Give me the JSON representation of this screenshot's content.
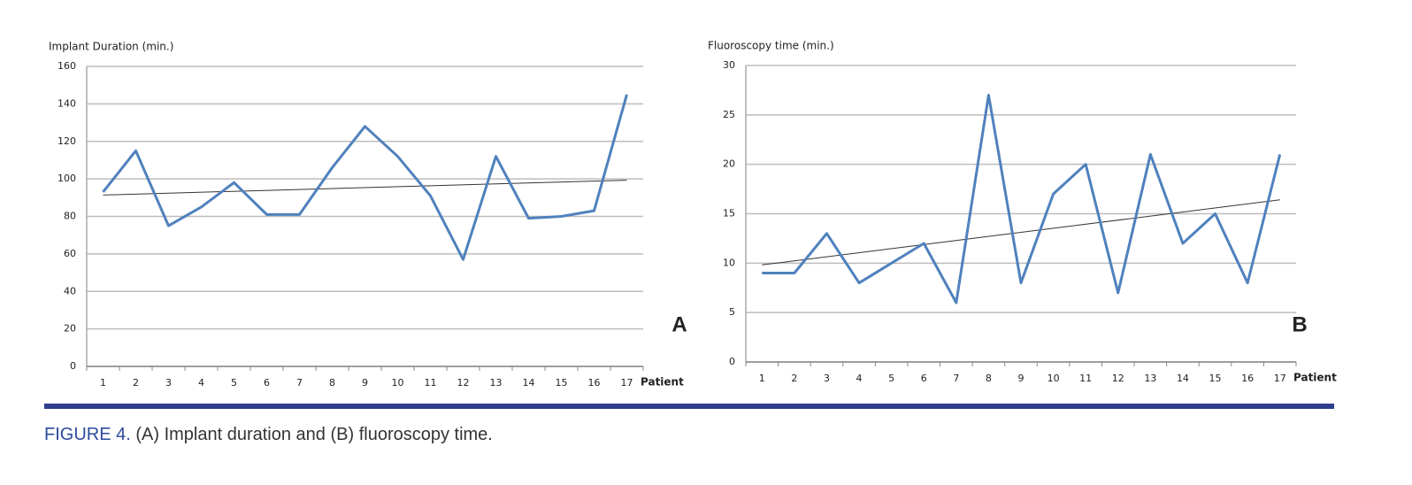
{
  "chart_data": [
    {
      "type": "line",
      "ylabel": "Implant Duration (min.)",
      "xlabel": "Patient",
      "panel_label": "A",
      "categories": [
        "1",
        "2",
        "3",
        "4",
        "5",
        "6",
        "7",
        "8",
        "9",
        "10",
        "11",
        "12",
        "13",
        "14",
        "15",
        "16",
        "17"
      ],
      "series": [
        {
          "color": "#4f81bd",
          "values": [
            93,
            115,
            75,
            85,
            98,
            81,
            81,
            106,
            128,
            112,
            91,
            57,
            112,
            79,
            80,
            83,
            145
          ]
        }
      ],
      "ylim": [
        0,
        160
      ],
      "yticks": [
        0,
        20,
        40,
        60,
        80,
        100,
        120,
        140,
        160
      ],
      "grid": true,
      "trendline": "linear"
    },
    {
      "type": "line",
      "ylabel": "Fluoroscopy time (min.)",
      "xlabel": "Patient",
      "panel_label": "B",
      "categories": [
        "1",
        "2",
        "3",
        "4",
        "5",
        "6",
        "7",
        "8",
        "9",
        "10",
        "11",
        "12",
        "13",
        "14",
        "15",
        "16",
        "17"
      ],
      "series": [
        {
          "color": "#4f81bd",
          "values": [
            9,
            9,
            13,
            8,
            10,
            12,
            6,
            27,
            8,
            17,
            20,
            7,
            21,
            12,
            15,
            8,
            21
          ]
        }
      ],
      "ylim": [
        0,
        30
      ],
      "yticks": [
        0,
        5,
        10,
        15,
        20,
        25,
        30
      ],
      "grid": true,
      "trendline": "linear"
    }
  ],
  "figure": {
    "label": "FIGURE 4.",
    "caption": "(A) Implant duration and (B) fluoroscopy time."
  }
}
